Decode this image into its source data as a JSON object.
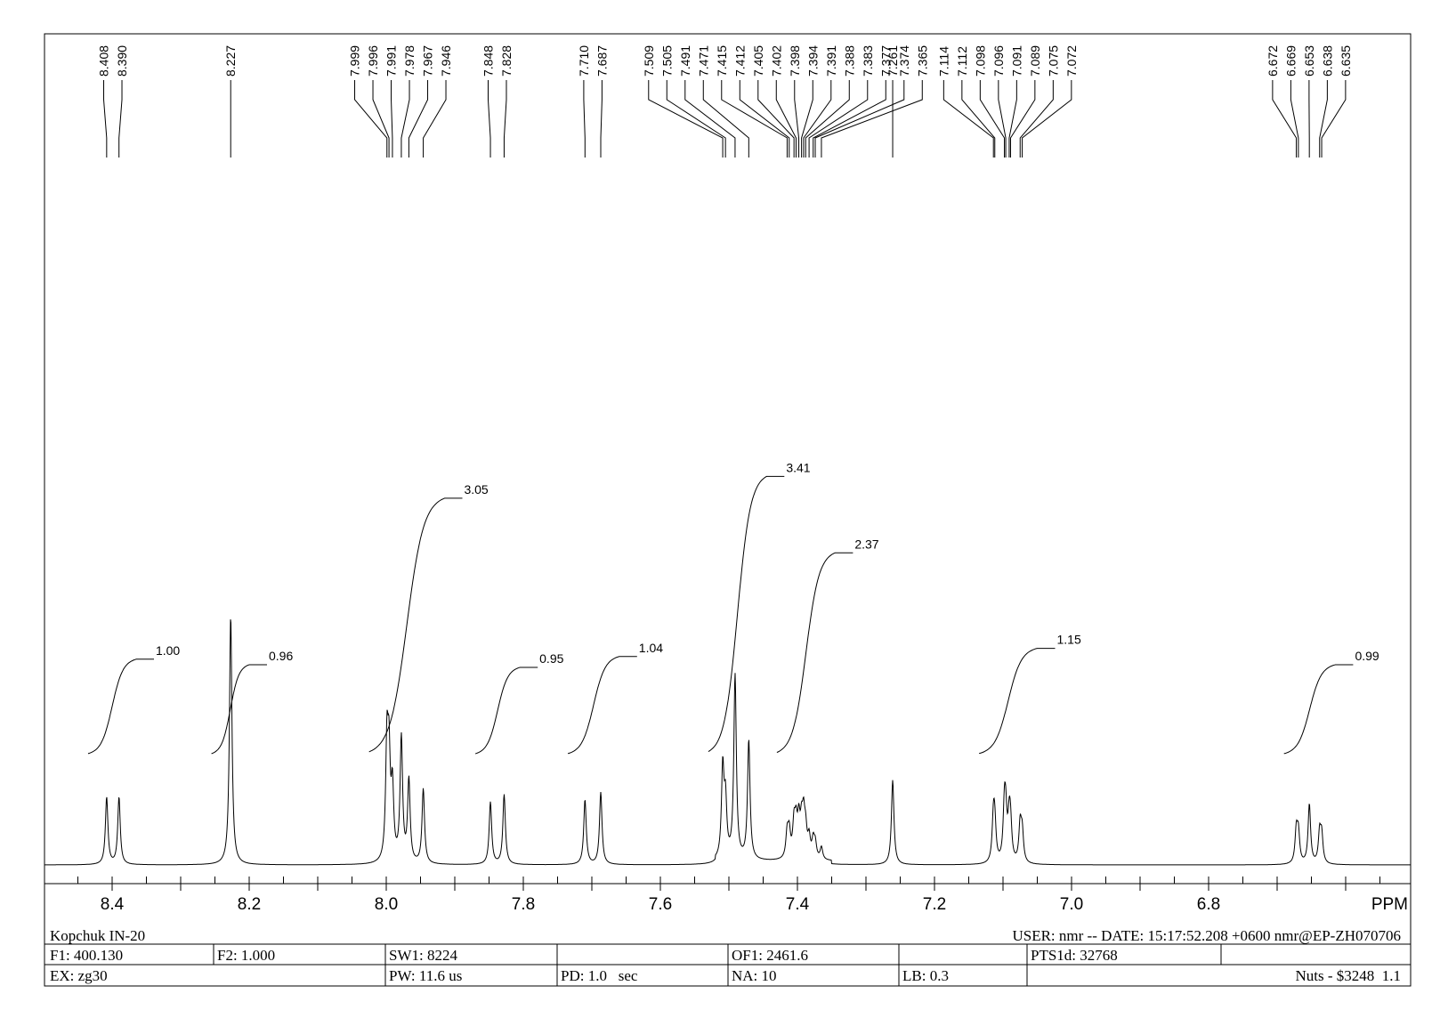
{
  "chart_data": {
    "type": "line",
    "xlabel": "PPM",
    "x_axis": {
      "reversed": true,
      "range": [
        8.5,
        6.55
      ],
      "tick_labels": [
        "8.4",
        "8.2",
        "8.0",
        "7.8",
        "7.6",
        "7.4",
        "7.2",
        "7.0",
        "6.8"
      ],
      "tick_values": [
        8.4,
        8.2,
        8.0,
        7.8,
        7.6,
        7.4,
        7.2,
        7.0,
        6.8
      ],
      "minor_step": 0.05
    },
    "peak_labels": [
      "8.408",
      "8.390",
      "8.227",
      "7.999",
      "7.996",
      "7.991",
      "7.978",
      "7.967",
      "7.946",
      "7.848",
      "7.828",
      "7.710",
      "7.687",
      "7.509",
      "7.505",
      "7.491",
      "7.471",
      "7.415",
      "7.412",
      "7.405",
      "7.402",
      "7.398",
      "7.394",
      "7.391",
      "7.388",
      "7.383",
      "7.377",
      "7.374",
      "7.365",
      "7.261",
      "7.114",
      "7.112",
      "7.098",
      "7.096",
      "7.091",
      "7.089",
      "7.075",
      "7.072",
      "6.672",
      "6.669",
      "6.653",
      "6.638",
      "6.635"
    ],
    "peaks": [
      {
        "ppm": 8.408,
        "intensity": 0.27
      },
      {
        "ppm": 8.39,
        "intensity": 0.27
      },
      {
        "ppm": 8.227,
        "intensity": 1.0
      },
      {
        "ppm": 7.999,
        "intensity": 0.45
      },
      {
        "ppm": 7.996,
        "intensity": 0.38
      },
      {
        "ppm": 7.991,
        "intensity": 0.28
      },
      {
        "ppm": 7.978,
        "intensity": 0.5
      },
      {
        "ppm": 7.967,
        "intensity": 0.33
      },
      {
        "ppm": 7.946,
        "intensity": 0.3
      },
      {
        "ppm": 7.848,
        "intensity": 0.25
      },
      {
        "ppm": 7.828,
        "intensity": 0.28
      },
      {
        "ppm": 7.71,
        "intensity": 0.26
      },
      {
        "ppm": 7.687,
        "intensity": 0.29
      },
      {
        "ppm": 7.509,
        "intensity": 0.36
      },
      {
        "ppm": 7.505,
        "intensity": 0.22
      },
      {
        "ppm": 7.491,
        "intensity": 0.74
      },
      {
        "ppm": 7.471,
        "intensity": 0.48
      },
      {
        "ppm": 7.415,
        "intensity": 0.1
      },
      {
        "ppm": 7.412,
        "intensity": 0.1
      },
      {
        "ppm": 7.405,
        "intensity": 0.13
      },
      {
        "ppm": 7.402,
        "intensity": 0.12
      },
      {
        "ppm": 7.398,
        "intensity": 0.14
      },
      {
        "ppm": 7.394,
        "intensity": 0.12
      },
      {
        "ppm": 7.391,
        "intensity": 0.15
      },
      {
        "ppm": 7.388,
        "intensity": 0.1
      },
      {
        "ppm": 7.383,
        "intensity": 0.08
      },
      {
        "ppm": 7.377,
        "intensity": 0.07
      },
      {
        "ppm": 7.374,
        "intensity": 0.06
      },
      {
        "ppm": 7.365,
        "intensity": 0.05
      },
      {
        "ppm": 7.261,
        "intensity": 0.34
      },
      {
        "ppm": 7.114,
        "intensity": 0.17
      },
      {
        "ppm": 7.112,
        "intensity": 0.14
      },
      {
        "ppm": 7.098,
        "intensity": 0.2
      },
      {
        "ppm": 7.096,
        "intensity": 0.16
      },
      {
        "ppm": 7.091,
        "intensity": 0.15
      },
      {
        "ppm": 7.089,
        "intensity": 0.13
      },
      {
        "ppm": 7.075,
        "intensity": 0.15
      },
      {
        "ppm": 7.072,
        "intensity": 0.12
      },
      {
        "ppm": 6.672,
        "intensity": 0.13
      },
      {
        "ppm": 6.669,
        "intensity": 0.12
      },
      {
        "ppm": 6.653,
        "intensity": 0.24
      },
      {
        "ppm": 6.638,
        "intensity": 0.12
      },
      {
        "ppm": 6.635,
        "intensity": 0.11
      }
    ],
    "integrals": [
      {
        "label": "1.00",
        "from": 8.435,
        "to": 8.365,
        "rise": 0.33
      },
      {
        "label": "0.96",
        "from": 8.255,
        "to": 8.2,
        "rise": 0.31
      },
      {
        "label": "3.05",
        "from": 8.025,
        "to": 7.915,
        "rise": 0.92
      },
      {
        "label": "0.95",
        "from": 7.87,
        "to": 7.805,
        "rise": 0.3
      },
      {
        "label": "1.04",
        "from": 7.735,
        "to": 7.66,
        "rise": 0.34
      },
      {
        "label": "3.41",
        "from": 7.53,
        "to": 7.445,
        "rise": 1.0
      },
      {
        "label": "2.37",
        "from": 7.43,
        "to": 7.345,
        "rise": 0.72
      },
      {
        "label": "1.15",
        "from": 7.135,
        "to": 7.05,
        "rise": 0.37
      },
      {
        "label": "0.99",
        "from": 6.69,
        "to": 6.615,
        "rise": 0.31
      }
    ]
  },
  "footer": {
    "title": "Kopchuk IN-20",
    "user_line": "USER: nmr -- DATE: 15:17:52.208 +0600  nmr@EP-ZH070706",
    "row1": [
      "F1: 400.130",
      "F2: 1.000",
      "SW1: 8224",
      "",
      "OF1: 2461.6",
      "",
      "PTS1d: 32768",
      ""
    ],
    "row2": [
      "EX: zg30",
      "",
      "PW: 11.6 us",
      "PD: 1.0   sec",
      "NA: 10",
      "LB: 0.3",
      "",
      "Nuts - $3248  1.1"
    ]
  }
}
